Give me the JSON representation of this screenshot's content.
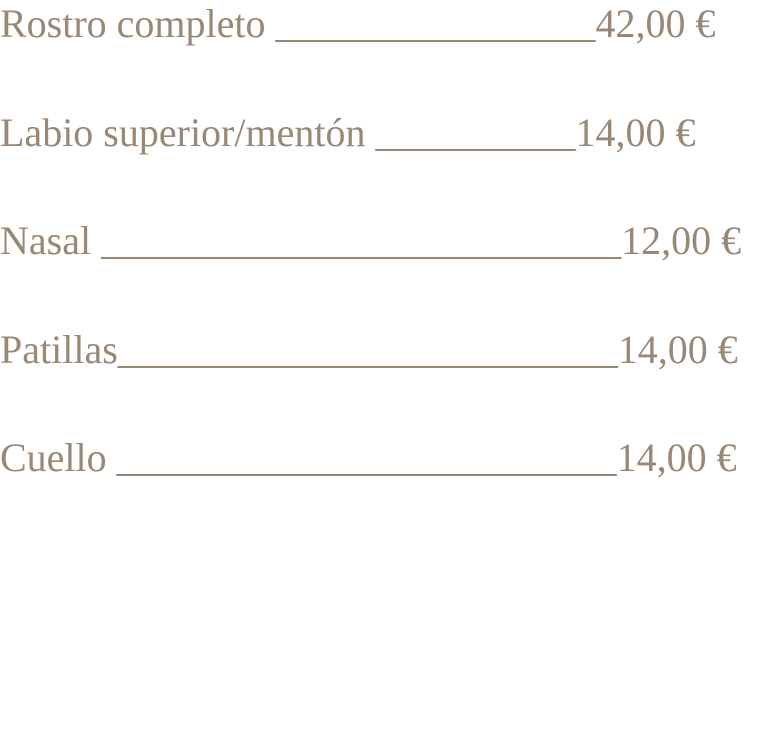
{
  "text_color": "#9a8877",
  "items": [
    {
      "label": "Rostro completo ",
      "leader": "________________",
      "price": "42,00 €"
    },
    {
      "label": "Labio superior/mentón ",
      "leader": "__________",
      "price": "14,00 €"
    },
    {
      "label": "Nasal ",
      "leader": "__________________________",
      "price": "12,00 €"
    },
    {
      "label": "Patillas",
      "leader": "_________________________",
      "price": "14,00 €"
    },
    {
      "label": "Cuello ",
      "leader": "_________________________",
      "price": "14,00 €"
    }
  ]
}
